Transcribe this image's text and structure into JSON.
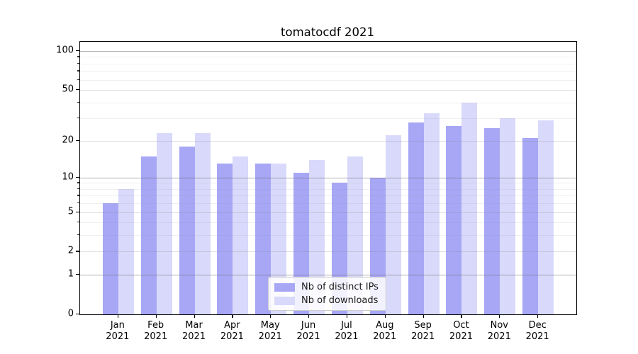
{
  "title": "tomatocdf 2021",
  "colors": {
    "ips_bar": "#a7a7f6",
    "downloads_bar": "#d9d9fb",
    "axis": "#000000",
    "background": "#ffffff"
  },
  "y_axis": {
    "major_ticks": [
      0,
      1,
      2,
      5,
      10,
      20,
      50,
      100
    ],
    "decade_gridlines": [
      1,
      10,
      100
    ],
    "mid_gridlines": [
      2,
      5,
      20,
      50
    ],
    "minor_gridlines": [
      3,
      4,
      6,
      7,
      8,
      9,
      30,
      40,
      60,
      70,
      80,
      90
    ]
  },
  "x_axis": {
    "months": [
      "Jan",
      "Feb",
      "Mar",
      "Apr",
      "May",
      "Jun",
      "Jul",
      "Aug",
      "Sep",
      "Oct",
      "Nov",
      "Dec"
    ],
    "year": "2021"
  },
  "legend": {
    "items": [
      {
        "label": "Nb of distinct IPs",
        "color_key": "ips_bar"
      },
      {
        "label": "Nb of downloads",
        "color_key": "downloads_bar"
      }
    ]
  },
  "chart_data": {
    "type": "bar",
    "title": "tomatocdf 2021",
    "categories": [
      "Jan 2021",
      "Feb 2021",
      "Mar 2021",
      "Apr 2021",
      "May 2021",
      "Jun 2021",
      "Jul 2021",
      "Aug 2021",
      "Sep 2021",
      "Oct 2021",
      "Nov 2021",
      "Dec 2021"
    ],
    "series": [
      {
        "name": "Nb of distinct IPs",
        "values": [
          6,
          15,
          18,
          13,
          13,
          11,
          9,
          10,
          28,
          26,
          25,
          21
        ]
      },
      {
        "name": "Nb of downloads",
        "values": [
          8,
          23,
          23,
          15,
          13,
          14,
          15,
          22,
          33,
          40,
          30,
          29
        ]
      }
    ],
    "xlabel": "",
    "ylabel": "",
    "yscale": "log1p",
    "ylim": [
      0,
      117
    ],
    "yticks": [
      0,
      1,
      2,
      5,
      10,
      20,
      50,
      100
    ],
    "grid": "both",
    "legend_position": "lower center"
  }
}
